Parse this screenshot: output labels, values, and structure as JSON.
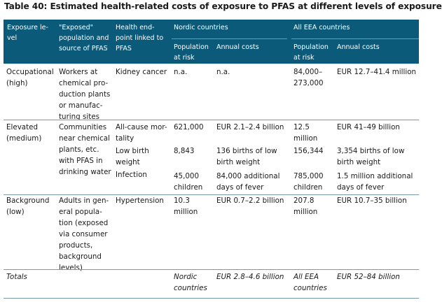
{
  "title": "Table 40: Estimated health-related costs of exposure to PFAS at different levels of exposure",
  "headers": {
    "exposure_level": "Exposure le-\nvel",
    "exposed_population": "\"Exposed\"\npopulation and\nsource of PFAS",
    "health_endpoint": "Health end-\npoint linked to\nPFAS",
    "nordic": "Nordic countries",
    "eea": "All EEA countries",
    "pop_at_risk": "Population\nat risk",
    "annual_costs": "Annual costs"
  },
  "rows": [
    {
      "level": "Occupational\n(high)",
      "population": "Workers at\nchemical pro-\nduction plants\nor manufac-\nturing sites",
      "endpoints": [
        "Kidney cancer"
      ],
      "nordic_pop": [
        "n.a."
      ],
      "nordic_cost": [
        "n.a."
      ],
      "eea_pop": [
        "84,000–\n273,000"
      ],
      "eea_cost": [
        "EUR 12.7–41.4 million"
      ]
    },
    {
      "level": "Elevated\n(medium)",
      "population": "Communities\nnear chemical\nplants, etc.\nwith PFAS in\ndrinking water",
      "endpoints": [
        "All-cause mor-\ntality",
        "Low birth\nweight",
        "Infection"
      ],
      "nordic_pop": [
        "621,000",
        "8,843",
        "45,000\nchildren"
      ],
      "nordic_cost": [
        "EUR 2.1–2.4 billion",
        "136 births of low\nbirth weight",
        "84,000 additional\ndays of fever"
      ],
      "eea_pop": [
        "12.5\nmillion",
        "156,344",
        "785,000\nchildren"
      ],
      "eea_cost": [
        "EUR 41–49 billion",
        "3,354 births of low\nbirth weight",
        "1.5 million additional\ndays of fever"
      ]
    },
    {
      "level": "Background\n(low)",
      "population": "Adults in gen-\neral popula-\ntion (exposed\nvia consumer\nproducts,\nbackground\nlevels)",
      "endpoints": [
        "Hypertension"
      ],
      "nordic_pop": [
        "10.3\nmillion"
      ],
      "nordic_cost": [
        "EUR 0.7–2.2 billion"
      ],
      "eea_pop": [
        "207.8\nmillion"
      ],
      "eea_cost": [
        "EUR 10.7–35 billion"
      ]
    }
  ],
  "totals": {
    "label": "Totals",
    "nordic_pop": "Nordic\ncountries",
    "nordic_cost": "EUR 2.8–4.6 billion",
    "eea_pop": "All EEA\ncountries",
    "eea_cost": "EUR 52–84 billion"
  }
}
